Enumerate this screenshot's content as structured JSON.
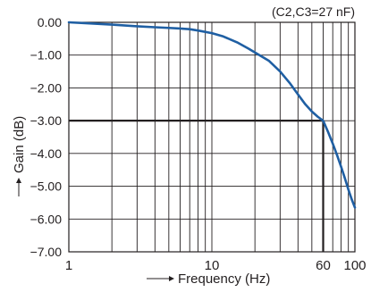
{
  "chart_data": {
    "type": "line",
    "title": "",
    "annotation": "(C2,C3=27 nF)",
    "xlabel": "Frequency (Hz)",
    "ylabel": "Gain (dB)",
    "x_scale": "log",
    "xlim": [
      1,
      100
    ],
    "ylim": [
      -7,
      0
    ],
    "x_ticks": [
      {
        "value": 1,
        "label": "1"
      },
      {
        "value": 10,
        "label": "10"
      },
      {
        "value": 60,
        "label": "60"
      },
      {
        "value": 100,
        "label": "100"
      }
    ],
    "y_ticks": [
      {
        "value": 0,
        "label": "0.00"
      },
      {
        "value": -1,
        "label": "−1.00"
      },
      {
        "value": -2,
        "label": "−2.00"
      },
      {
        "value": -3,
        "label": "−3.00"
      },
      {
        "value": -4,
        "label": "−4.00"
      },
      {
        "value": -5,
        "label": "−5.00"
      },
      {
        "value": -6,
        "label": "−6.00"
      },
      {
        "value": -7,
        "label": "−7.00"
      }
    ],
    "grid": true,
    "reference_lines": [
      {
        "axis": "y",
        "value": -3
      },
      {
        "axis": "x",
        "value": 60
      }
    ],
    "series": [
      {
        "color": "#1f5fa3",
        "x": [
          1,
          2,
          3,
          4,
          5,
          6,
          7,
          8,
          10,
          12,
          15,
          18,
          20,
          25,
          30,
          35,
          40,
          45,
          50,
          55,
          60,
          65,
          70,
          75,
          80,
          85,
          90,
          95,
          100
        ],
        "y": [
          0,
          -0.07,
          -0.12,
          -0.15,
          -0.17,
          -0.19,
          -0.21,
          -0.25,
          -0.33,
          -0.43,
          -0.61,
          -0.8,
          -0.92,
          -1.17,
          -1.5,
          -1.85,
          -2.2,
          -2.5,
          -2.72,
          -2.88,
          -3.0,
          -3.35,
          -3.7,
          -4.05,
          -4.4,
          -4.75,
          -5.1,
          -5.4,
          -5.65
        ]
      }
    ]
  },
  "colors": {
    "curve": "#1f5fa3",
    "grid": "#231f20"
  }
}
